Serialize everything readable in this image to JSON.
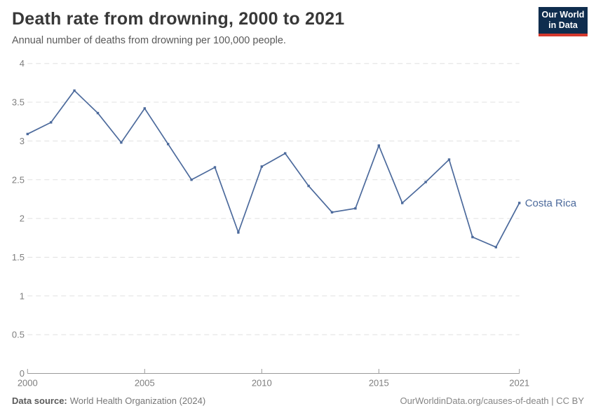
{
  "header": {
    "title": "Death rate from drowning, 2000 to 2021",
    "subtitle": "Annual number of deaths from drowning per 100,000 people."
  },
  "logo": {
    "line1": "Our World",
    "line2": "in Data",
    "bg_color": "#0f2d4e",
    "accent_color": "#d4382d"
  },
  "footer": {
    "source_label": "Data source:",
    "source_text": "World Health Organization (2024)",
    "license_text": "OurWorldinData.org/causes-of-death | CC BY"
  },
  "chart_data": {
    "type": "line",
    "title": "Death rate from drowning, 2000 to 2021",
    "xlabel": "",
    "ylabel": "",
    "xlim": [
      2000,
      2021
    ],
    "ylim": [
      0,
      4
    ],
    "x_ticks": [
      2000,
      2005,
      2010,
      2015,
      2021
    ],
    "y_ticks": [
      0,
      0.5,
      1,
      1.5,
      2,
      2.5,
      3,
      3.5,
      4
    ],
    "grid": "horizontal-dashed",
    "legend_position": "end-of-line",
    "series": [
      {
        "name": "Costa Rica",
        "x": [
          2000,
          2001,
          2002,
          2003,
          2004,
          2005,
          2006,
          2007,
          2008,
          2009,
          2010,
          2011,
          2012,
          2013,
          2014,
          2015,
          2016,
          2017,
          2018,
          2019,
          2020,
          2021
        ],
        "values": [
          3.09,
          3.24,
          3.65,
          3.36,
          2.98,
          3.42,
          2.96,
          2.5,
          2.66,
          1.82,
          2.67,
          2.84,
          2.42,
          2.08,
          2.13,
          2.94,
          2.2,
          2.47,
          2.76,
          1.76,
          1.63,
          2.2
        ]
      }
    ],
    "colors": {
      "line": "#4C6A9C",
      "grid": "#e0e0e0",
      "axis": "#9a9a9a",
      "tick_label": "#7e7e7e"
    }
  }
}
